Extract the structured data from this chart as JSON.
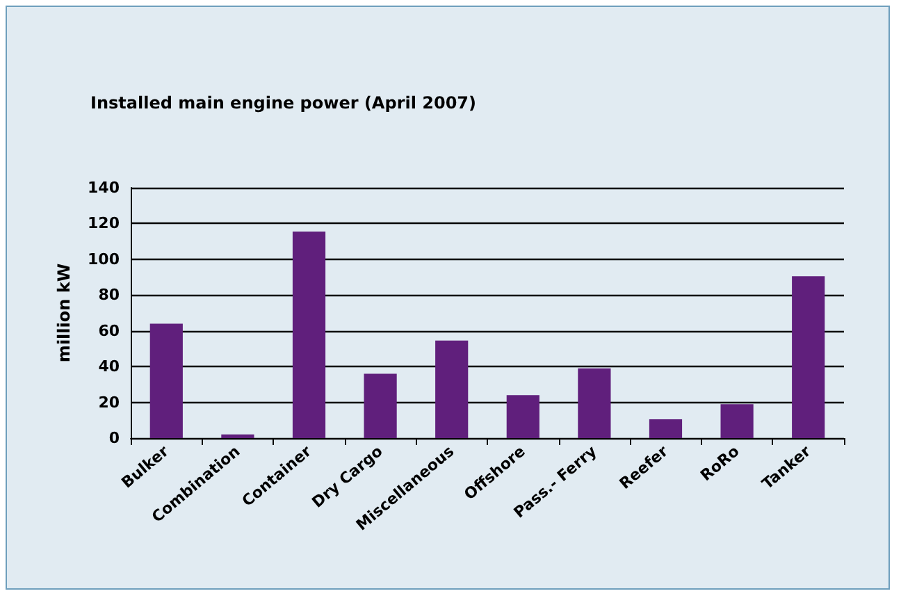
{
  "chart_data": {
    "type": "bar",
    "title": "Installed main engine power (April 2007)",
    "ylabel": "million kW",
    "categories": [
      "Bulker",
      "Combination",
      "Container",
      "Dry Cargo",
      "Miscellaneous",
      "Offshore",
      "Pass.- Ferry",
      "Reefer",
      "RoRo",
      "Tanker"
    ],
    "values": [
      64,
      2,
      115.5,
      36,
      54.5,
      24,
      39,
      10.5,
      19,
      90.5
    ],
    "color": "#601f7c",
    "ylim": [
      0,
      140
    ],
    "yticks": [
      0,
      20,
      40,
      60,
      80,
      100,
      120,
      140
    ],
    "grid": "y"
  }
}
